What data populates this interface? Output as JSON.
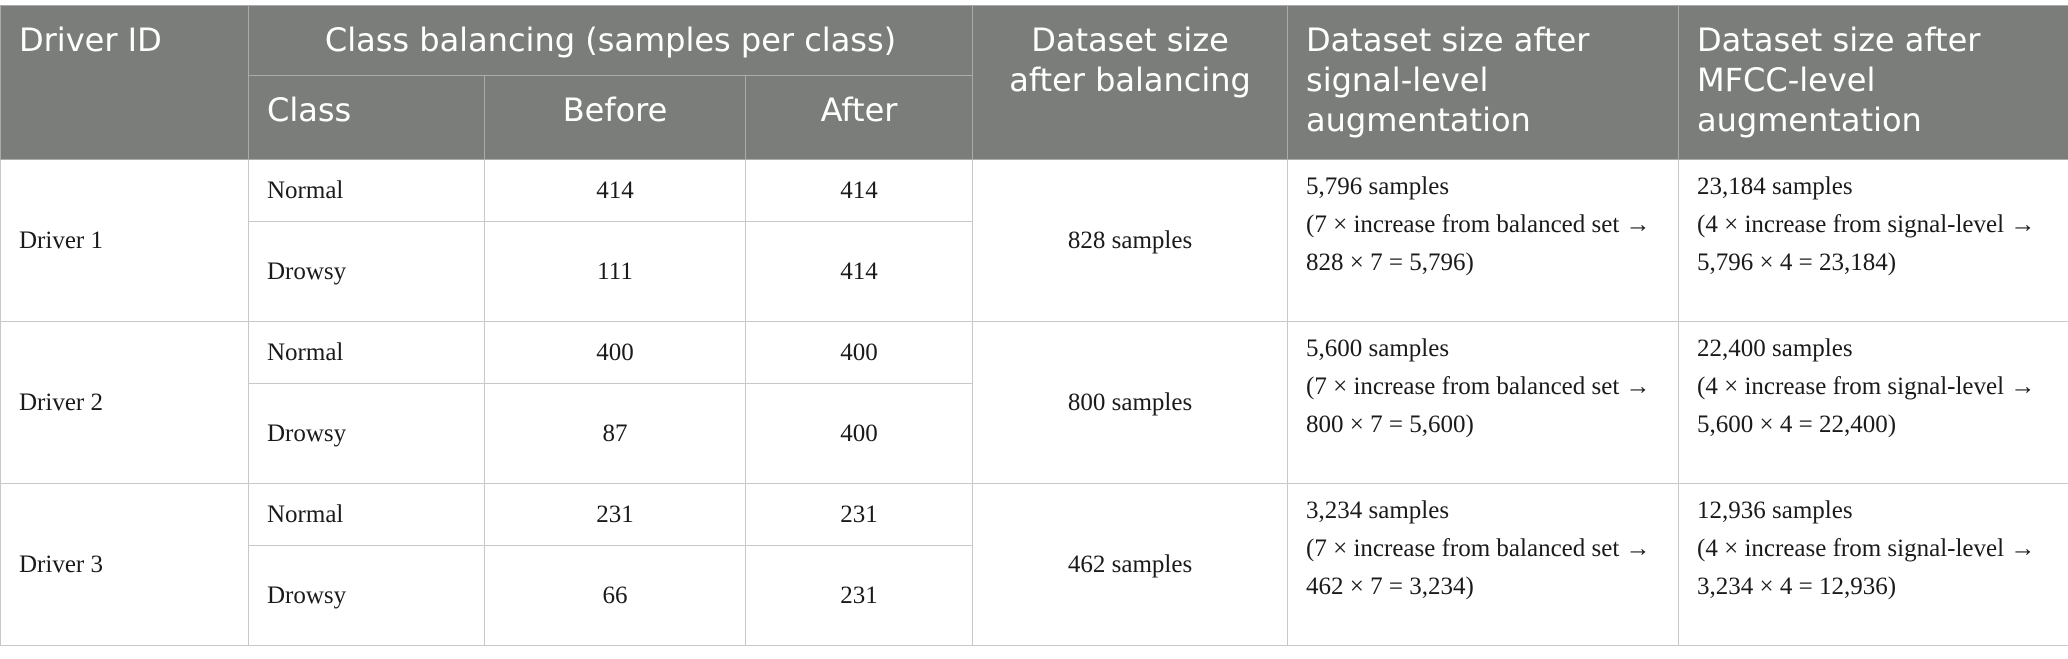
{
  "table": {
    "header": {
      "driver_id": "Driver ID",
      "class_balancing": "Class balancing (samples per class)",
      "class": "Class",
      "before": "Before",
      "after": "After",
      "balanced_size": "Dataset size after balancing",
      "signal_size": "Dataset size after signal-level augmentation",
      "mfcc_size": "Dataset size after MFCC-level augmentation"
    },
    "rows": [
      {
        "driver": "Driver 1",
        "classes": [
          {
            "class": "Normal",
            "before": "414",
            "after": "414"
          },
          {
            "class": "Drowsy",
            "before": "111",
            "after": "414"
          }
        ],
        "balanced": "828 samples",
        "signal": {
          "size": "5,796 samples",
          "note": "(7 × increase from balanced set → 828 × 7 = 5,796)"
        },
        "mfcc": {
          "size": "23,184 samples",
          "note": "(4 × increase from signal-level → 5,796 × 4 = 23,184)"
        }
      },
      {
        "driver": "Driver 2",
        "classes": [
          {
            "class": "Normal",
            "before": "400",
            "after": "400"
          },
          {
            "class": "Drowsy",
            "before": "87",
            "after": "400"
          }
        ],
        "balanced": "800 samples",
        "signal": {
          "size": "5,600 samples",
          "note": "(7 × increase from balanced set → 800 × 7 = 5,600)"
        },
        "mfcc": {
          "size": "22,400 samples",
          "note": "(4 × increase from signal-level → 5,600 × 4 = 22,400)"
        }
      },
      {
        "driver": "Driver 3",
        "classes": [
          {
            "class": "Normal",
            "before": "231",
            "after": "231"
          },
          {
            "class": "Drowsy",
            "before": "66",
            "after": "231"
          }
        ],
        "balanced": "462 samples",
        "signal": {
          "size": "3,234 samples",
          "note": "(7 × increase from balanced set → 462 × 7 = 3,234)"
        },
        "mfcc": {
          "size": "12,936 samples",
          "note": "(4 × increase from signal-level → 3,234 × 4 = 12,936)"
        }
      }
    ]
  }
}
